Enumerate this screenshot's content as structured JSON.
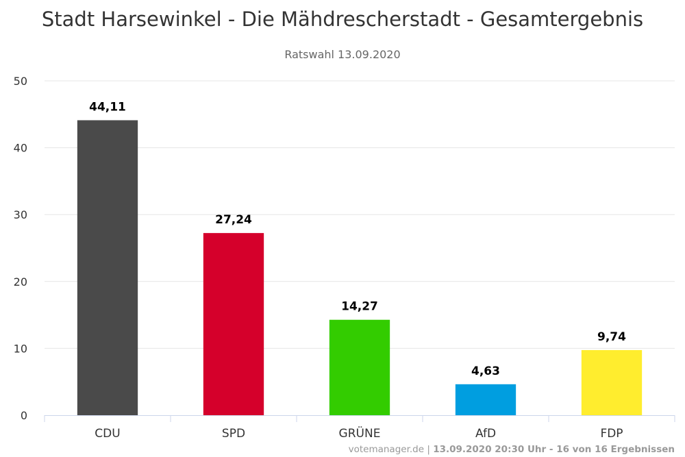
{
  "chart_data": {
    "type": "bar",
    "title": "Stadt Harsewinkel - Die Mähdrescherstadt - Gesamtergebnis",
    "subtitle": "Ratswahl 13.09.2020",
    "categories": [
      "CDU",
      "SPD",
      "GRÜNE",
      "AfD",
      "FDP"
    ],
    "values": [
      44.11,
      27.24,
      14.27,
      4.63,
      9.74
    ],
    "value_labels": [
      "44,11",
      "27,24",
      "14,27",
      "4,63",
      "9,74"
    ],
    "colors": [
      "#4a4a4a",
      "#d5002b",
      "#33cc00",
      "#009ee0",
      "#ffed2e"
    ],
    "ylim": [
      0,
      50
    ],
    "yticks": [
      0,
      10,
      20,
      30,
      40,
      50
    ],
    "xlabel": "",
    "ylabel": "",
    "grid": true,
    "legend": "none"
  },
  "credits": {
    "source": "votemanager.de",
    "separator": " | ",
    "status": "13.09.2020 20:30 Uhr - 16 von 16 Ergebnissen"
  }
}
